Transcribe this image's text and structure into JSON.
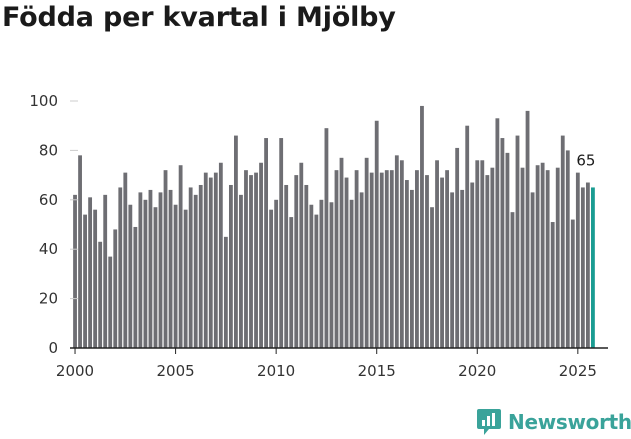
{
  "title": "Födda per kvartal i Mjölby",
  "brand": {
    "name": "Newsworthy",
    "icon": "newsworthy-logo-icon"
  },
  "colors": {
    "bar": "#6e6e73",
    "highlight": "#1a9c92",
    "brand": "#3aa39a",
    "axis": "#222222"
  },
  "chart_data": {
    "type": "bar",
    "title": "Födda per kvartal i Mjölby",
    "xlabel": "",
    "ylabel": "",
    "ylim": [
      0,
      100
    ],
    "xlim": [
      1999.75,
      2026.5
    ],
    "yticks": [
      0,
      20,
      40,
      60,
      80,
      100
    ],
    "xticks": [
      2000,
      2005,
      2010,
      2015,
      2020,
      2025
    ],
    "start": {
      "year": 2000,
      "quarter": 1
    },
    "values": [
      62,
      78,
      54,
      61,
      56,
      43,
      62,
      37,
      48,
      65,
      71,
      58,
      49,
      63,
      60,
      64,
      57,
      63,
      72,
      64,
      58,
      74,
      56,
      65,
      62,
      66,
      71,
      69,
      71,
      75,
      45,
      66,
      86,
      62,
      72,
      70,
      71,
      75,
      85,
      56,
      60,
      85,
      66,
      53,
      70,
      75,
      66,
      58,
      54,
      60,
      89,
      59,
      72,
      77,
      69,
      60,
      72,
      63,
      77,
      71,
      92,
      71,
      72,
      72,
      78,
      76,
      68,
      64,
      72,
      98,
      70,
      57,
      76,
      69,
      72,
      63,
      81,
      64,
      90,
      67,
      76,
      76,
      70,
      73,
      93,
      85,
      79,
      55,
      86,
      73,
      96,
      63,
      74,
      75,
      72,
      51,
      73,
      86,
      80,
      52,
      71,
      65,
      67,
      65
    ],
    "last_label": "65",
    "highlight_last": true
  }
}
